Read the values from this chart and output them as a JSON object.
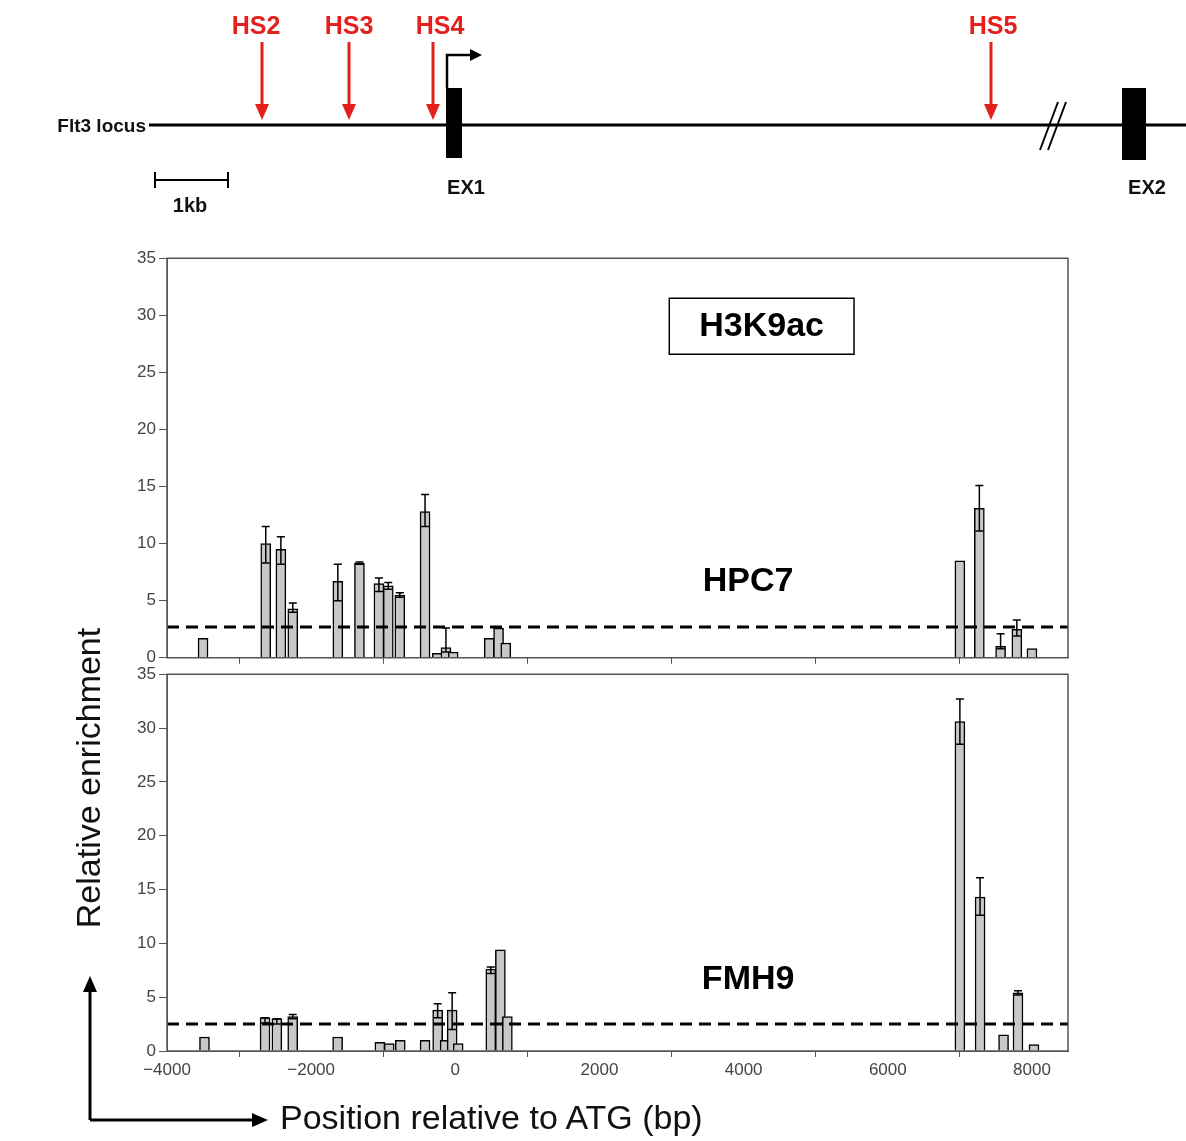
{
  "chart_data": [
    {
      "type": "other",
      "annotations": [
        "Flt3 locus",
        "HS2",
        "HS3",
        "HS4",
        "HS5",
        "EX1",
        "EX2",
        "1kb"
      ]
    },
    {
      "type": "bar",
      "title": "H3K9ac",
      "ylabel": "Relative enrichment",
      "annotations": [
        "HPC7"
      ],
      "color": "#c8c8c8",
      "x": [
        -3500,
        -2630,
        -2420,
        -2255,
        -1630,
        -1330,
        -1060,
        -930,
        -770,
        -420,
        -250,
        -130,
        -30,
        470,
        600,
        700,
        7000,
        7270,
        7565,
        7790,
        8000
      ],
      "values": [
        1.7,
        10.0,
        9.5,
        4.3,
        6.7,
        8.3,
        6.5,
        6.3,
        5.5,
        12.8,
        0.4,
        0.9,
        0.5,
        1.7,
        2.6,
        1.3,
        8.5,
        13.1,
        1.0,
        2.5,
        0.8
      ],
      "errors": [
        null,
        [
          8.3,
          11.5
        ],
        [
          8.2,
          10.6
        ],
        [
          4.0,
          4.8
        ],
        [
          5.0,
          8.2
        ],
        [
          8.2,
          8.4
        ],
        [
          5.8,
          7.0
        ],
        [
          6.0,
          6.6
        ],
        [
          5.3,
          5.7
        ],
        [
          11.5,
          14.3
        ],
        null,
        [
          0.5,
          2.6
        ],
        null,
        null,
        null,
        null,
        null,
        [
          11.1,
          15.1
        ],
        [
          0.8,
          2.1
        ],
        [
          1.9,
          3.3
        ],
        null
      ],
      "xlim": [
        -4000,
        8500
      ],
      "xticks": [
        -4000,
        -2000,
        0,
        2000,
        4000,
        6000,
        8000
      ],
      "ylim": [
        0,
        35
      ],
      "yticks": [
        0,
        5,
        10,
        15,
        20,
        25,
        30,
        35
      ],
      "tick_labels": "y",
      "grid": false,
      "legend": false,
      "ref_lines": [
        {
          "axis": "y",
          "value": 2.7,
          "color": "#000000",
          "line_style": "dashed"
        }
      ]
    },
    {
      "type": "bar",
      "xlabel": "Position relative to ATG (bp)",
      "annotations": [
        "FMH9"
      ],
      "color": "#c8c8c8",
      "x": [
        -3480,
        -2640,
        -2476,
        -2256,
        -1633,
        -1047,
        -917,
        -764,
        -420,
        -245,
        -142,
        -44,
        40,
        492,
        625,
        722,
        7000,
        7280,
        7606,
        7806,
        8028
      ],
      "values": [
        1.3,
        3.1,
        3.0,
        3.2,
        1.3,
        0.8,
        0.7,
        1.0,
        1.0,
        3.8,
        1.0,
        3.8,
        0.7,
        7.6,
        9.4,
        3.2,
        30.6,
        14.3,
        1.5,
        5.4,
        0.6
      ],
      "errors": [
        null,
        [
          2.6,
          3.1
        ],
        [
          2.5,
          3.0
        ],
        [
          3.0,
          3.4
        ],
        null,
        null,
        null,
        null,
        null,
        [
          3.1,
          4.4
        ],
        null,
        [
          2.0,
          5.4
        ],
        null,
        [
          7.2,
          7.8
        ],
        null,
        null,
        [
          28.5,
          32.7
        ],
        [
          12.6,
          16.1
        ],
        null,
        [
          5.2,
          5.6
        ],
        null
      ],
      "xlim": [
        -4000,
        8500
      ],
      "xticks": [
        -4000,
        -2000,
        0,
        2000,
        4000,
        6000,
        8000
      ],
      "ylim": [
        0,
        35
      ],
      "yticks": [
        0,
        5,
        10,
        15,
        20,
        25,
        30,
        35
      ],
      "grid": false,
      "legend": false,
      "ref_lines": [
        {
          "axis": "y",
          "value": 2.5,
          "color": "#000000",
          "line_style": "dashed"
        }
      ]
    }
  ]
}
